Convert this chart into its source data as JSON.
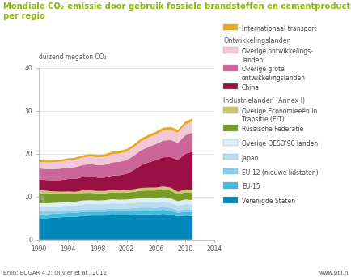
{
  "title_line1": "Mondiale CO₂-emissie door gebruik fossiele brandstoffen en cementproductie",
  "title_line2": "per regio",
  "ylabel": "duizend megaton CO₂",
  "source": "Bron: EDGAR 4.2; Olivier et al., 2012",
  "website": "www.pbl.nl",
  "years": [
    1990,
    1991,
    1992,
    1993,
    1994,
    1995,
    1996,
    1997,
    1998,
    1999,
    2000,
    2001,
    2002,
    2003,
    2004,
    2005,
    2006,
    2007,
    2008,
    2009,
    2010,
    2011
  ],
  "series": {
    "Verenigde Staten": [
      5.0,
      5.0,
      5.1,
      5.2,
      5.3,
      5.3,
      5.5,
      5.6,
      5.6,
      5.6,
      5.8,
      5.7,
      5.7,
      5.8,
      5.9,
      5.9,
      5.8,
      6.0,
      5.8,
      5.4,
      5.6,
      5.5
    ],
    "EU-15": [
      0.9,
      0.9,
      0.9,
      0.9,
      0.9,
      0.9,
      0.95,
      0.92,
      0.91,
      0.91,
      0.93,
      0.91,
      0.93,
      0.95,
      0.97,
      0.95,
      0.95,
      0.95,
      0.93,
      0.85,
      0.87,
      0.85
    ],
    "EU-12 (nieuwe lidstaten)": [
      0.7,
      0.66,
      0.63,
      0.6,
      0.57,
      0.57,
      0.58,
      0.57,
      0.56,
      0.56,
      0.57,
      0.57,
      0.58,
      0.59,
      0.61,
      0.63,
      0.65,
      0.67,
      0.67,
      0.6,
      0.64,
      0.64
    ],
    "Japan": [
      1.1,
      1.1,
      1.1,
      1.1,
      1.2,
      1.2,
      1.2,
      1.2,
      1.15,
      1.2,
      1.2,
      1.2,
      1.2,
      1.2,
      1.25,
      1.25,
      1.25,
      1.25,
      1.2,
      1.1,
      1.2,
      1.2
    ],
    "Overige OESO90 landen": [
      0.8,
      0.8,
      0.82,
      0.83,
      0.84,
      0.86,
      0.87,
      0.88,
      0.88,
      0.89,
      0.91,
      0.91,
      0.92,
      0.94,
      0.96,
      0.97,
      0.99,
      1.01,
      1.01,
      0.97,
      1.02,
      1.02
    ],
    "Russische Federatie": [
      2.4,
      2.2,
      2.0,
      1.9,
      1.8,
      1.7,
      1.75,
      1.72,
      1.65,
      1.6,
      1.6,
      1.6,
      1.6,
      1.65,
      1.7,
      1.75,
      1.8,
      1.8,
      1.8,
      1.6,
      1.7,
      1.7
    ],
    "Overige EIT": [
      0.8,
      0.72,
      0.68,
      0.64,
      0.6,
      0.6,
      0.6,
      0.6,
      0.58,
      0.57,
      0.58,
      0.59,
      0.6,
      0.62,
      0.64,
      0.66,
      0.68,
      0.7,
      0.7,
      0.63,
      0.67,
      0.67
    ],
    "China": [
      2.4,
      2.5,
      2.6,
      2.7,
      2.9,
      3.0,
      3.1,
      3.2,
      3.1,
      3.1,
      3.3,
      3.5,
      3.8,
      4.5,
      5.3,
      5.9,
      6.4,
      6.8,
      7.1,
      7.4,
      8.3,
      8.9
    ],
    "Overige grote": [
      2.5,
      2.55,
      2.6,
      2.65,
      2.7,
      2.75,
      2.8,
      2.9,
      2.95,
      3.0,
      3.1,
      3.15,
      3.2,
      3.3,
      3.5,
      3.6,
      3.75,
      3.9,
      4.0,
      4.0,
      4.3,
      4.5
    ],
    "Overige ontwikkelings": [
      1.5,
      1.55,
      1.6,
      1.62,
      1.65,
      1.7,
      1.75,
      1.8,
      1.82,
      1.85,
      1.9,
      1.92,
      1.95,
      2.0,
      2.1,
      2.15,
      2.2,
      2.3,
      2.35,
      2.35,
      2.5,
      2.6
    ],
    "Internationaal transport": [
      0.4,
      0.42,
      0.44,
      0.46,
      0.48,
      0.5,
      0.52,
      0.54,
      0.55,
      0.57,
      0.6,
      0.61,
      0.62,
      0.63,
      0.65,
      0.66,
      0.67,
      0.68,
      0.68,
      0.64,
      0.67,
      0.68
    ]
  },
  "series_order": [
    "Verenigde Staten",
    "EU-15",
    "EU-12 (nieuwe lidstaten)",
    "Japan",
    "Overige OESO90 landen",
    "Russische Federatie",
    "Overige EIT",
    "China",
    "Overige grote",
    "Overige ontwikkelings",
    "Internationaal transport"
  ],
  "colors": {
    "Verenigde Staten": "#0088bb",
    "EU-15": "#44bbdd",
    "EU-12 (nieuwe lidstaten)": "#88ccee",
    "Japan": "#bbddef",
    "Overige OESO90 landen": "#ddeef7",
    "Russische Federatie": "#7a9a28",
    "Overige EIT": "#c8c870",
    "China": "#991144",
    "Overige grote": "#cc6699",
    "Overige ontwikkelings": "#f0c8d8",
    "Internationaal transport": "#e8a820"
  },
  "ylim": [
    0,
    40
  ],
  "yticks": [
    0,
    10,
    20,
    30,
    40
  ],
  "xticks": [
    1990,
    1994,
    1998,
    2002,
    2006,
    2010,
    2014
  ],
  "background_color": "#ffffff",
  "title_color": "#8cb800",
  "grid_color": "#dddddd",
  "text_color": "#555555",
  "pbl_color": "#bbbbbb"
}
